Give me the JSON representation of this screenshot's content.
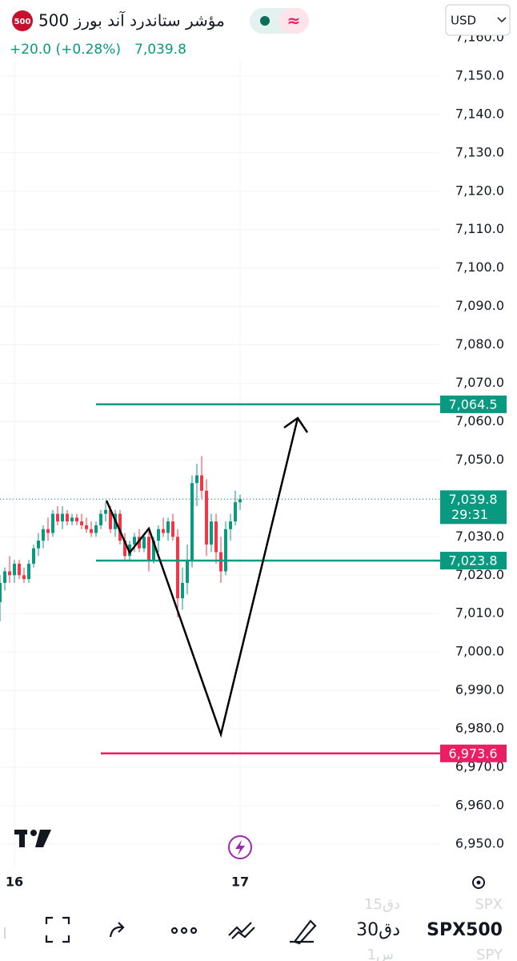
{
  "header": {
    "badge": "500",
    "title": "مؤشر ستاندرد آند بورز 500",
    "change": "+20.0 (+0.28%)",
    "price": "7,039.8",
    "currency": "USD"
  },
  "chart_data": {
    "type": "candlestick",
    "x": [
      0,
      1,
      2,
      3,
      4,
      5,
      6,
      7,
      8,
      9,
      10,
      11,
      12,
      13,
      14,
      15,
      16,
      17,
      18,
      19,
      20,
      21,
      22,
      23,
      24,
      25,
      26,
      27,
      28,
      29,
      30,
      31,
      32,
      33,
      34,
      35,
      36,
      37,
      38,
      39,
      40,
      41,
      42,
      43,
      44,
      45,
      46,
      47,
      48,
      49,
      50
    ],
    "open": [
      7013,
      7018,
      7021,
      7020,
      7023,
      7020,
      7019,
      7023,
      7027,
      7029,
      7032,
      7031,
      7036,
      7034,
      7036,
      7034,
      7035,
      7034,
      7033,
      7032,
      7031,
      7033,
      7036,
      7037,
      7032,
      7036,
      7029,
      7025,
      7028,
      7030,
      7027,
      7030,
      7024,
      7029,
      7032,
      7031,
      7034,
      7030,
      7014,
      7018,
      7024,
      7044,
      7046,
      7042,
      7028,
      7034,
      7026,
      7021,
      7032,
      7034,
      7039
    ],
    "high": [
      7020,
      7022,
      7025,
      7024,
      7024,
      7022,
      7024,
      7028,
      7031,
      7033,
      7035,
      7037,
      7038,
      7038,
      7037,
      7036,
      7036,
      7036,
      7035,
      7034,
      7034,
      7037,
      7039,
      7038,
      7037,
      7037,
      7031,
      7029,
      7031,
      7032,
      7031,
      7032,
      7030,
      7033,
      7035,
      7035,
      7036,
      7032,
      7022,
      7028,
      7046,
      7049,
      7051,
      7045,
      7036,
      7036,
      7030,
      7034,
      7036,
      7042,
      7041
    ],
    "low": [
      7008,
      7016,
      7018,
      7018,
      7019,
      7018,
      7018,
      7022,
      7025,
      7027,
      7029,
      7030,
      7033,
      7032,
      7033,
      7033,
      7033,
      7032,
      7031,
      7030,
      7030,
      7032,
      7034,
      7031,
      7030,
      7028,
      7024,
      7024,
      7026,
      7026,
      7026,
      7021,
      7023,
      7026,
      7030,
      7029,
      7029,
      7009,
      7011,
      7015,
      7022,
      7038,
      7040,
      7025,
      7026,
      7023,
      7018,
      7020,
      7029,
      7033,
      7037
    ],
    "close": [
      7018,
      7021,
      7020,
      7023,
      7020,
      7019,
      7023,
      7027,
      7029,
      7032,
      7031,
      7036,
      7034,
      7036,
      7034,
      7035,
      7034,
      7033,
      7032,
      7031,
      7033,
      7036,
      7037,
      7032,
      7036,
      7029,
      7025,
      7028,
      7030,
      7027,
      7030,
      7024,
      7029,
      7032,
      7031,
      7034,
      7030,
      7014,
      7018,
      7024,
      7044,
      7046,
      7042,
      7028,
      7034,
      7026,
      7021,
      7032,
      7034,
      7039,
      7039.8
    ],
    "up_color": "#089981",
    "down_color": "#f23645",
    "xlim": [
      0,
      91.67
    ],
    "xticks": [
      {
        "value": 3,
        "label": "16"
      },
      {
        "value": 50,
        "label": "17"
      }
    ],
    "ylim": [
      6944,
      7170
    ],
    "yticks": [
      {
        "value": 6950,
        "label": "6,950.0"
      },
      {
        "value": 6960,
        "label": "6,960.0"
      },
      {
        "value": 6970,
        "label": "6,970.0"
      },
      {
        "value": 6980,
        "label": "6,980.0"
      },
      {
        "value": 6990,
        "label": "6,990.0"
      },
      {
        "value": 7000,
        "label": "7,000.0"
      },
      {
        "value": 7010,
        "label": "7,010.0"
      },
      {
        "value": 7020,
        "label": "7,020.0"
      },
      {
        "value": 7030,
        "label": "7,030.0"
      },
      {
        "value": 7040,
        "label": "7,040.0"
      },
      {
        "value": 7050,
        "label": "7,050.0"
      },
      {
        "value": 7060,
        "label": "7,060.0"
      },
      {
        "value": 7070,
        "label": "7,070.0"
      },
      {
        "value": 7080,
        "label": "7,080.0"
      },
      {
        "value": 7090,
        "label": "7,090.0"
      },
      {
        "value": 7100,
        "label": "7,100.0"
      },
      {
        "value": 7110,
        "label": "7,110.0"
      },
      {
        "value": 7120,
        "label": "7,120.0"
      },
      {
        "value": 7130,
        "label": "7,130.0"
      },
      {
        "value": 7140,
        "label": "7,140.0"
      },
      {
        "value": 7150,
        "label": "7,150.0"
      },
      {
        "value": 7160,
        "label": "7,160.0"
      }
    ],
    "grid": true,
    "hlines": [
      {
        "value": 7064.5,
        "label": "7,064.5",
        "color": "#089981"
      },
      {
        "value": 7023.8,
        "label": "7,023.8",
        "color": "#089981"
      },
      {
        "value": 6973.6,
        "label": "6,973.6",
        "color": "#e91e63"
      }
    ],
    "last_price": {
      "value": 7039.8,
      "label": "7,039.8",
      "countdown": "29:31",
      "color": "#089981"
    }
  },
  "toolbar": {
    "symbol": "SPX500",
    "interval": "30دق",
    "above_interval": "15دق",
    "above_symbol": "SPX",
    "below_interval": "1س",
    "below_symbol": "SPY"
  }
}
